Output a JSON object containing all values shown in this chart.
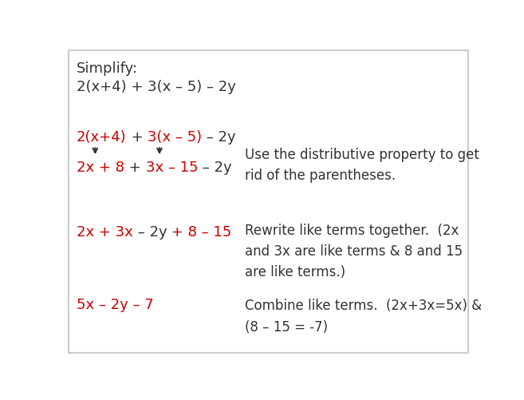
{
  "background_color": "#ffffff",
  "figsize": [
    6.57,
    5.02
  ],
  "dpi": 100,
  "border_color": "#cccccc",
  "dark_color": "#333333",
  "red_color": "#cc0000",
  "font_family": "DejaVu Sans",
  "title": "Simplify:",
  "problem": "2(x+4) + 3(x – 5) – 2y",
  "note1": "Use the distributive property to get\nrid of the parentheses.",
  "note2": "Rewrite like terms together.  (2x\nand 3x are like terms & 8 and 15\nare like terms.)",
  "note3": "Combine like terms.  (2x+3x=5x) &\n(8 – 15 = -7)"
}
